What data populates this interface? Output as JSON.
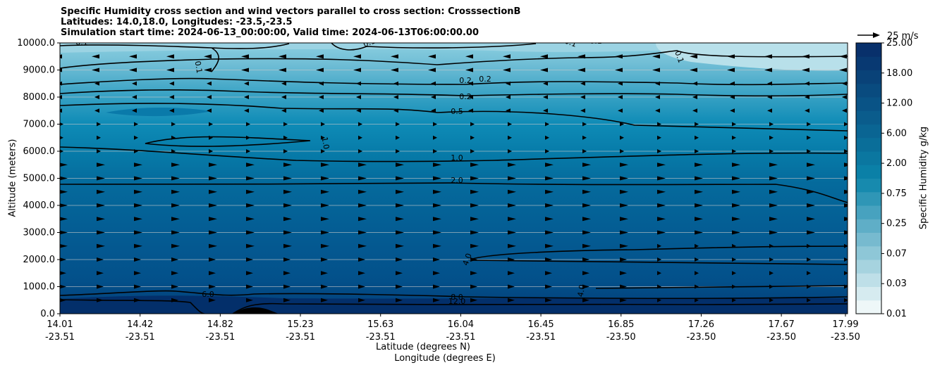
{
  "title_lines": [
    "Specific Humidity cross section and wind vectors parallel to cross section: CrosssectionB",
    "Latitudes: 14.0,18.0, Longitudes: -23.5,-23.5",
    "Simulation start time: 2024-06-13_00:00:00, Valid time: 2024-06-13T06:00:00.00"
  ],
  "chart_data": {
    "type": "heatmap",
    "title": "Specific Humidity cross section and wind vectors parallel to cross section: CrosssectionB",
    "xlabel_lat": "Latitude (degrees N)",
    "xlabel_lon": "Longitude (degrees E)",
    "ylabel": "Altitude (meters)",
    "colorbar_label": "Specific Humidity g/kg",
    "ylim": [
      0,
      10000
    ],
    "yticks": [
      "0.0",
      "1000.0",
      "2000.0",
      "3000.0",
      "4000.0",
      "5000.0",
      "6000.0",
      "7000.0",
      "8000.0",
      "9000.0",
      "10000.0"
    ],
    "xticks": [
      {
        "lat": "14.01",
        "lon": "-23.51"
      },
      {
        "lat": "14.42",
        "lon": "-23.51"
      },
      {
        "lat": "14.82",
        "lon": "-23.51"
      },
      {
        "lat": "15.23",
        "lon": "-23.51"
      },
      {
        "lat": "15.63",
        "lon": "-23.51"
      },
      {
        "lat": "16.04",
        "lon": "-23.51"
      },
      {
        "lat": "16.45",
        "lon": "-23.51"
      },
      {
        "lat": "16.85",
        "lon": "-23.50"
      },
      {
        "lat": "17.26",
        "lon": "-23.50"
      },
      {
        "lat": "17.67",
        "lon": "-23.50"
      },
      {
        "lat": "17.99",
        "lon": "-23.50"
      }
    ],
    "colorbar_ticks": [
      "0.01",
      "0.03",
      "0.07",
      "0.25",
      "0.75",
      "2.00",
      "6.00",
      "12.00",
      "18.00",
      "25.00"
    ],
    "colorbar_levels": 20,
    "colors": {
      "cmap_light": "#eef7f8",
      "cmap_mid": "#0b84aa",
      "cmap_dark": "#08306b"
    },
    "contour_labels": [
      "0.1",
      "0.1",
      "0.1",
      "0.1",
      "0.2",
      "0.2",
      "0.2",
      "0.5",
      "1.0",
      "1.0",
      "2.0",
      "4.0",
      "4.0",
      "6.0",
      "8.0",
      "8.0",
      "12.0"
    ],
    "quiver_key": "25 m/s",
    "wind_direction": {
      "upper": "southward",
      "lower": "northward"
    }
  }
}
